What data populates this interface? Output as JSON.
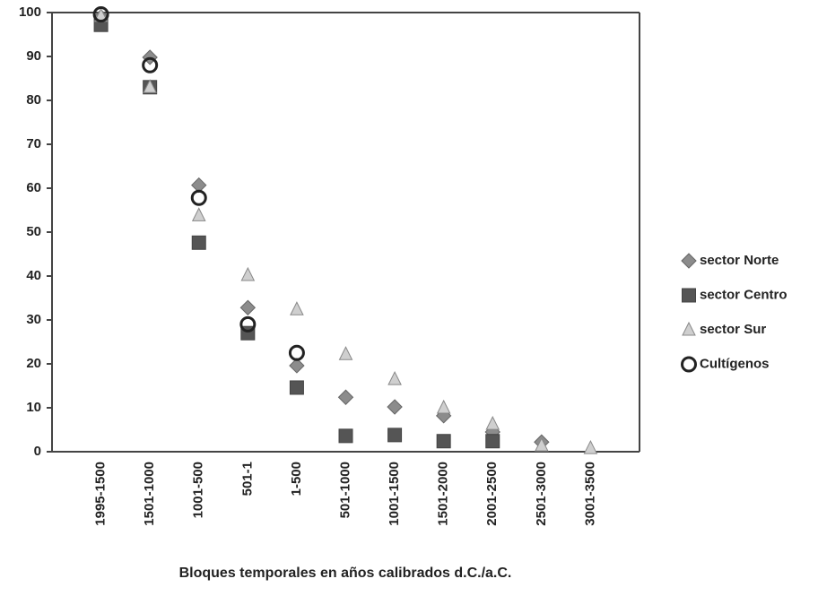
{
  "chart_data": {
    "type": "scatter",
    "x_label": "Bloques temporales en años calibrados d.C./a.C.",
    "categories": [
      "1995-1500",
      "1501-1000",
      "1001-500",
      "501-1",
      "1-500",
      "501-1000",
      "1001-1500",
      "1501-2000",
      "2001-2500",
      "2501-3000",
      "3001-3500"
    ],
    "series": [
      {
        "name": "sector Norte",
        "color": "#8c8c8c",
        "marker": "diamond",
        "values": [
          99,
          89.8,
          60.7,
          32.8,
          19.6,
          12.4,
          10.2,
          8.2,
          4.5,
          2.2,
          null
        ]
      },
      {
        "name": "sector Centro",
        "color": "#555555",
        "marker": "square",
        "values": [
          97.2,
          83,
          47.6,
          27,
          14.6,
          3.6,
          3.8,
          2.4,
          2.4,
          null,
          null
        ]
      },
      {
        "name": "sector Sur",
        "color": "#cfcfcf",
        "marker": "triangle",
        "values": [
          99.2,
          83,
          53.8,
          40.2,
          32.4,
          22.2,
          16.5,
          10,
          6.3,
          1.4,
          0.8
        ]
      },
      {
        "name": "Cultígenos",
        "color": "#222222",
        "marker": "circle",
        "values": [
          99.6,
          88,
          57.8,
          29,
          22.5,
          null,
          null,
          null,
          null,
          null,
          null
        ]
      }
    ],
    "ylim": [
      0,
      100
    ],
    "yticks": [
      0,
      10,
      20,
      30,
      40,
      50,
      60,
      70,
      80,
      90,
      100
    ],
    "grid": false
  }
}
